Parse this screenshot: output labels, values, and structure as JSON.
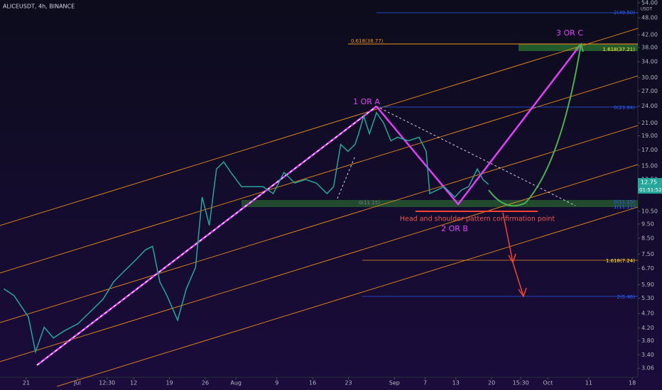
{
  "chart_data": {
    "type": "line",
    "title": "ALICEUSDT, 4h, BINANCE",
    "y_label": "USDT",
    "log_scale": true,
    "color": "#26a69a",
    "x": [
      -4.4,
      -2.4,
      0.4,
      1.8,
      3.5,
      5.3,
      7.4,
      10.1,
      12.9,
      15,
      17.1,
      19.2,
      21.3,
      23.3,
      24.7,
      26.1,
      27.5,
      29.6,
      31.3,
      33.1,
      34.4,
      35.8,
      37.2,
      38.6,
      40,
      42.1,
      44.2,
      46.3,
      48.3,
      50.4,
      52.5,
      54.6,
      56.7,
      58.8,
      60.1,
      61.5,
      62.9,
      64.3,
      65,
      66,
      67.1,
      68.5,
      69.9,
      71.3,
      72.6,
      74.7,
      76.8,
      78.2,
      78.9,
      80.3,
      81.7,
      83.8,
      85.1,
      86.5,
      88.2,
      89.3,
      90.4
    ],
    "values": [
      5.71,
      5.41,
      4.58,
      3.48,
      4.22,
      3.88,
      4.1,
      4.34,
      4.84,
      5.26,
      6.04,
      6.57,
      7.13,
      7.75,
      7.97,
      6.04,
      5.41,
      4.46,
      5.71,
      6.75,
      11.73,
      9.4,
      14.64,
      15.47,
      14.24,
      12.74,
      12.74,
      12.74,
      12.06,
      14.24,
      13.11,
      13.47,
      13.11,
      12.06,
      12.74,
      17.76,
      16.81,
      17.76,
      19.3,
      22.18,
      19.3,
      22.78,
      20.97,
      18.26,
      18.78,
      18.26,
      18.78,
      16.81,
      12.06,
      12.4,
      12.74,
      11.73,
      12.4,
      12.74,
      14.64,
      13.47,
      12.96
    ],
    "xlim": [
      -5.14,
      119.6
    ],
    "xticks": [
      {
        "value": 0,
        "label": "21"
      },
      {
        "value": 10,
        "label": "Jul"
      },
      {
        "value": 15.8,
        "label": "12:30"
      },
      {
        "value": 21,
        "label": "12"
      },
      {
        "value": 28,
        "label": "19"
      },
      {
        "value": 35,
        "label": "26"
      },
      {
        "value": 41,
        "label": "Aug"
      },
      {
        "value": 49,
        "label": "9"
      },
      {
        "value": 56,
        "label": "16"
      },
      {
        "value": 63,
        "label": "23"
      },
      {
        "value": 72,
        "label": "Sep"
      },
      {
        "value": 78,
        "label": "7"
      },
      {
        "value": 84,
        "label": "13"
      },
      {
        "value": 91,
        "label": "20"
      },
      {
        "value": 96.7,
        "label": "15:30"
      },
      {
        "value": 102,
        "label": "Oct"
      },
      {
        "value": 110,
        "label": "11"
      },
      {
        "value": 118.5,
        "label": "18"
      }
    ],
    "ylim": [
      2.85,
      55.2
    ],
    "yticks": [
      {
        "value": 54,
        "label": "54.00"
      },
      {
        "value": 48,
        "label": "48.00"
      },
      {
        "value": 42,
        "label": "42.00"
      },
      {
        "value": 38,
        "label": "38.00"
      },
      {
        "value": 34,
        "label": "34.00"
      },
      {
        "value": 30,
        "label": "30.00"
      },
      {
        "value": 27,
        "label": "27.00"
      },
      {
        "value": 24,
        "label": "24.00"
      },
      {
        "value": 21,
        "label": "21.00"
      },
      {
        "value": 19,
        "label": "19.00"
      },
      {
        "value": 17,
        "label": "17.00"
      },
      {
        "value": 15,
        "label": "15.00"
      },
      {
        "value": 13.5,
        "label": "13.50"
      },
      {
        "value": 10.5,
        "label": "10.50"
      },
      {
        "value": 9.5,
        "label": "9.50"
      },
      {
        "value": 8.5,
        "label": "8.50"
      },
      {
        "value": 7.5,
        "label": "7.50"
      },
      {
        "value": 6.7,
        "label": "6.70"
      },
      {
        "value": 5.9,
        "label": "5.90"
      },
      {
        "value": 5.3,
        "label": "5.30"
      },
      {
        "value": 4.7,
        "label": "4.70"
      },
      {
        "value": 4.2,
        "label": "4.20"
      },
      {
        "value": 3.8,
        "label": "3.80"
      },
      {
        "value": 3.4,
        "label": "3.40"
      },
      {
        "value": 3.06,
        "label": "3.06"
      }
    ],
    "last_price": 12.75,
    "countdown": "01:51:52",
    "annotations": [
      "1 OR A",
      "2 OR B",
      "3 OR C",
      "Head and shoulder pattern confirmation point",
      "2(49.50)",
      "0.618(38.77)",
      "1.618(37.21)",
      "0(23.84)",
      "0(11.15)",
      "0(11.15)",
      "1(11.11)",
      "1.618(7.24)",
      "2(5.46)"
    ]
  }
}
